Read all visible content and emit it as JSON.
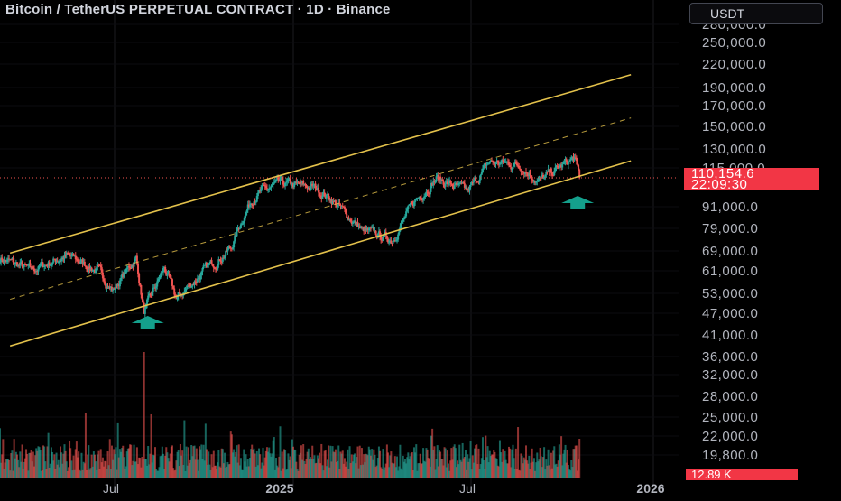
{
  "header": {
    "title": "Bitcoin / TetherUS PERPETUAL CONTRACT · 1D · Binance",
    "currency_button": "USDT"
  },
  "price_axis": {
    "labels": [
      "280,000.0",
      "250,000.0",
      "220,000.0",
      "190,000.0",
      "170,000.0",
      "150,000.0",
      "130,000.0",
      "115,000.0",
      "91,000.0",
      "79,000.0",
      "69,000.0",
      "61,000.0",
      "53,000.0",
      "47,000.0",
      "41,000.0",
      "36,000.0",
      "32,000.0",
      "28,000.0",
      "25,000.0",
      "22,000.0",
      "19,800.0"
    ]
  },
  "time_axis": {
    "labels": [
      "Jul",
      "2025",
      "Jul",
      "2026"
    ]
  },
  "last_price": {
    "value": "110,154.6",
    "countdown": "22:09:30",
    "color": "#f23645"
  },
  "volume_label": "12.89 K",
  "colors": {
    "up": "#26a69a",
    "down": "#ef5350",
    "channel": "#e3c14b",
    "arrow": "#14a08c",
    "grid": "#1c1c21"
  },
  "chart_data": {
    "type": "candlestick",
    "title": "Bitcoin / TetherUS PERPETUAL CONTRACT · 1D · Binance",
    "scale": "log",
    "x_range": [
      "2024-03-15",
      "2026-01-20"
    ],
    "ylim": [
      19800,
      280000
    ],
    "price_path_approx": [
      {
        "date": "2024-03-15",
        "close": 68000
      },
      {
        "date": "2024-04-15",
        "close": 63000
      },
      {
        "date": "2024-05-20",
        "close": 69000
      },
      {
        "date": "2024-06-20",
        "close": 63000
      },
      {
        "date": "2024-07-05",
        "close": 56000
      },
      {
        "date": "2024-07-28",
        "close": 68000
      },
      {
        "date": "2024-08-05",
        "close": 49000
      },
      {
        "date": "2024-08-25",
        "close": 64000
      },
      {
        "date": "2024-09-06",
        "close": 53000
      },
      {
        "date": "2024-10-01",
        "close": 62000
      },
      {
        "date": "2024-10-30",
        "close": 72000
      },
      {
        "date": "2024-11-12",
        "close": 88000
      },
      {
        "date": "2024-11-22",
        "close": 99000
      },
      {
        "date": "2024-12-17",
        "close": 106000
      },
      {
        "date": "2025-01-20",
        "close": 104000
      },
      {
        "date": "2025-02-05",
        "close": 98000
      },
      {
        "date": "2025-03-10",
        "close": 80000
      },
      {
        "date": "2025-04-08",
        "close": 76000
      },
      {
        "date": "2025-05-01",
        "close": 96000
      },
      {
        "date": "2025-05-22",
        "close": 110000
      },
      {
        "date": "2025-06-22",
        "close": 101000
      },
      {
        "date": "2025-07-14",
        "close": 121000
      },
      {
        "date": "2025-08-14",
        "close": 119000
      },
      {
        "date": "2025-09-01",
        "close": 108000
      },
      {
        "date": "2025-10-06",
        "close": 124000
      },
      {
        "date": "2025-10-11",
        "close": 110154.6
      }
    ],
    "channel": {
      "upper": [
        {
          "date": "2024-03-25",
          "price": 70000
        },
        {
          "date": "2025-12-01",
          "price": 205000
        }
      ],
      "middle": [
        {
          "date": "2024-03-25",
          "price": 53000
        },
        {
          "date": "2025-12-01",
          "price": 158000
        }
      ],
      "lower": [
        {
          "date": "2024-03-25",
          "price": 40000
        },
        {
          "date": "2025-12-01",
          "price": 122000
        }
      ]
    },
    "markers": [
      {
        "type": "up-arrow",
        "date": "2024-08-05"
      },
      {
        "type": "up-arrow",
        "date": "2025-10-11"
      }
    ],
    "last_volume": "12.89 K"
  }
}
